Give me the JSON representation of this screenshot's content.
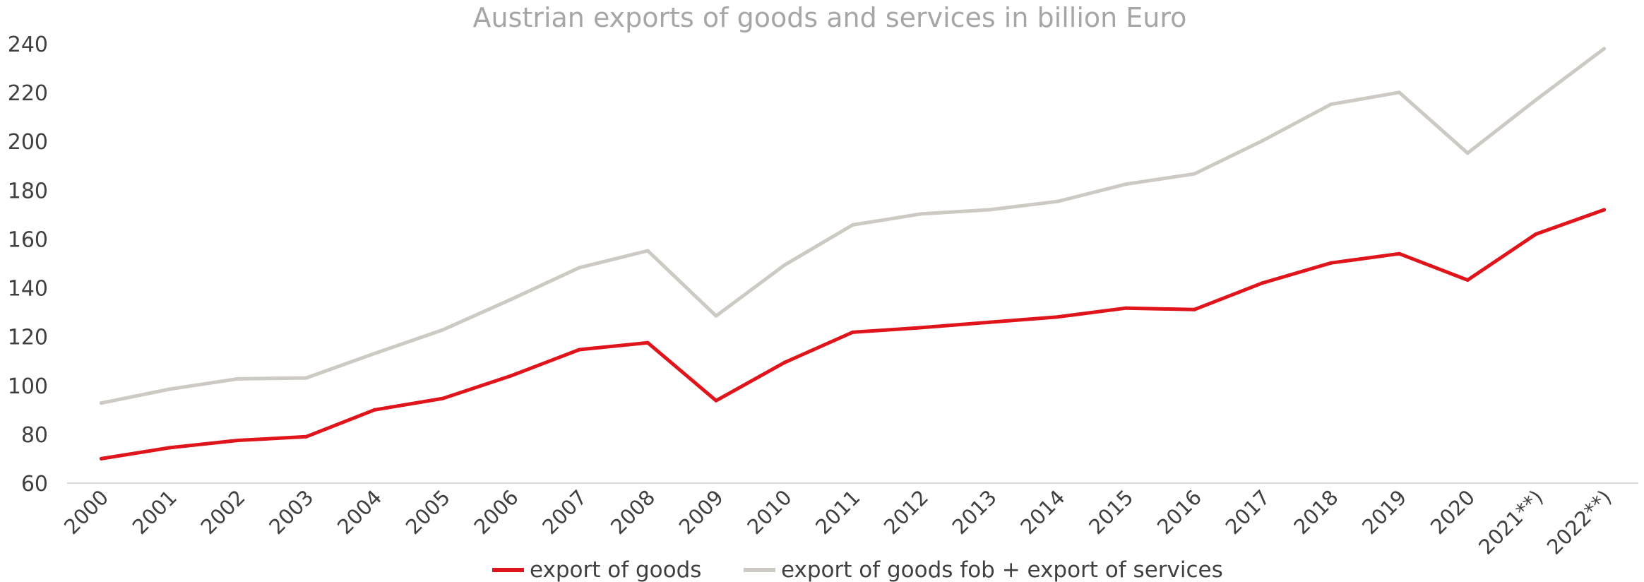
{
  "chart_data": {
    "type": "line",
    "title": "Austrian exports of goods and services in billion Euro",
    "xlabel": "",
    "ylabel": "",
    "categories": [
      "2000",
      "2001",
      "2002",
      "2003",
      "2004",
      "2005",
      "2006",
      "2007",
      "2008",
      "2009",
      "2010",
      "2011",
      "2012",
      "2013",
      "2014",
      "2015",
      "2016",
      "2017",
      "2018",
      "2019",
      "2020",
      "2021**)",
      "2022**)"
    ],
    "ylim": [
      60,
      240
    ],
    "yticks": [
      60,
      80,
      100,
      120,
      140,
      160,
      180,
      200,
      220,
      240
    ],
    "grid": false,
    "legend_position": "bottom",
    "series": [
      {
        "name": "export of goods",
        "color": "#e0151b",
        "values": [
          70,
          74.5,
          77.5,
          79,
          90,
          94.7,
          104,
          114.7,
          117.5,
          93.8,
          109.4,
          121.8,
          123.7,
          125.9,
          128.1,
          131.7,
          131.1,
          142,
          150.2,
          154,
          143.2,
          162,
          172
        ]
      },
      {
        "name": "export of goods fob + export of services",
        "color": "#cdcac4",
        "values": [
          92.8,
          98.5,
          102.7,
          103.1,
          113.1,
          122.8,
          135.3,
          148.3,
          155.2,
          128.5,
          149.3,
          165.8,
          170.3,
          172,
          175.4,
          182.5,
          186.7,
          200.3,
          215.2,
          220.1,
          195.2,
          217,
          238
        ]
      }
    ]
  }
}
